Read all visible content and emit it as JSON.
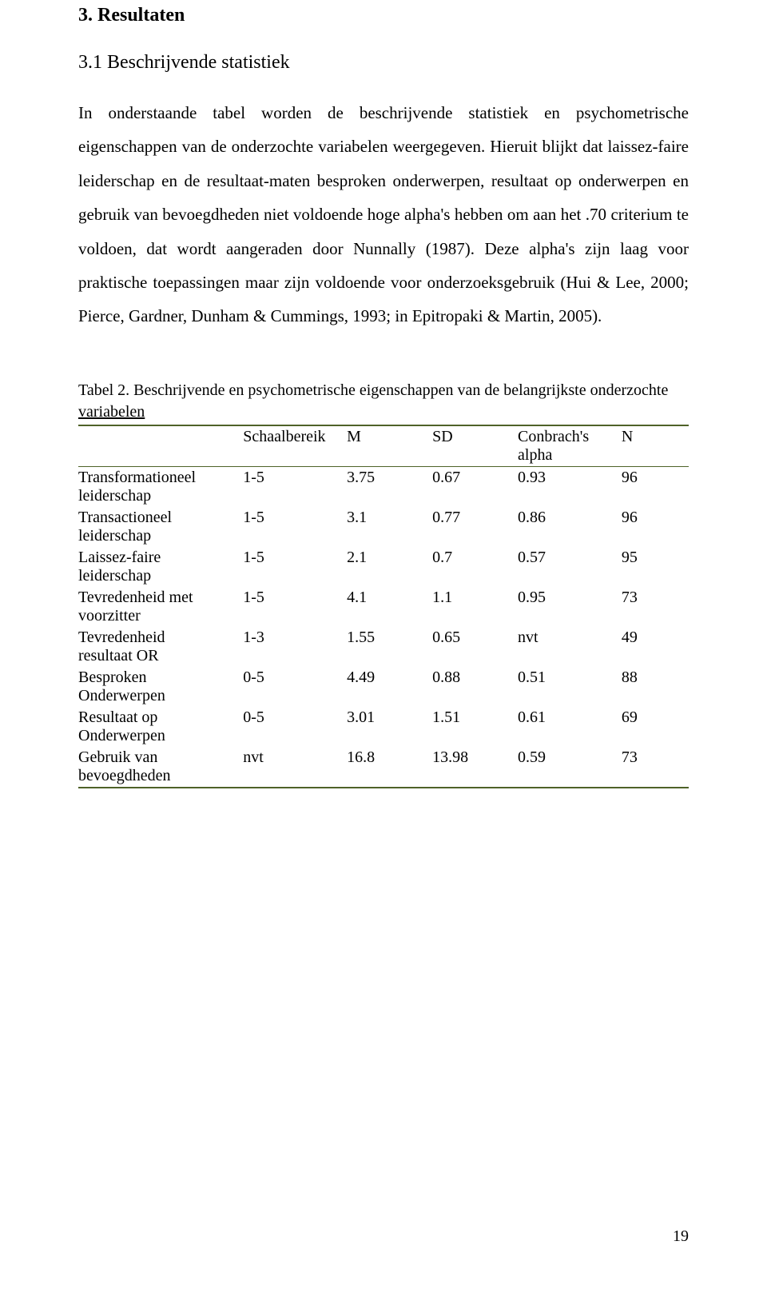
{
  "colors": {
    "text": "#000000",
    "background": "#ffffff",
    "table_border": "#4f6228"
  },
  "fonts": {
    "body_family": "Times New Roman",
    "h1_size_pt": 16,
    "body_size_pt": 14,
    "table_size_pt": 13
  },
  "heading1": "3. Resultaten",
  "heading2": "3.1 Beschrijvende statistiek",
  "paragraph": "In onderstaande tabel worden de beschrijvende statistiek en psychometrische eigenschappen van de onderzochte variabelen weergegeven. Hieruit blijkt dat laissez-faire leiderschap en de resultaat-maten besproken onderwerpen, resultaat op onderwerpen en gebruik van bevoegdheden niet voldoende hoge alpha's hebben om aan het .70 criterium te voldoen, dat wordt aangeraden door Nunnally (1987). Deze alpha's zijn laag voor praktische toepassingen maar zijn voldoende voor onderzoeksgebruik (Hui & Lee, 2000; Pierce, Gardner, Dunham & Cummings, 1993; in Epitropaki & Martin, 2005).",
  "table_caption_prefix": "Tabel 2. Beschrijvende en psychometrische eigenschappen van de belangrijkste onderzochte ",
  "table_caption_underlined": "variabelen",
  "table": {
    "headers": {
      "c0": "",
      "c1": "Schaalbereik",
      "c2": "M",
      "c3": "SD",
      "c4_line1": "Conbrach's",
      "c4_line2": "alpha",
      "c5": "N"
    },
    "rows": [
      {
        "label_l1": "Transformationeel",
        "label_l2": "leiderschap",
        "s": "1-5",
        "m": "3.75",
        "sd": "0.67",
        "ca": "0.93",
        "n": "96"
      },
      {
        "label_l1": "Transactioneel",
        "label_l2": "leiderschap",
        "s": "1-5",
        "m": "3.1",
        "sd": "0.77",
        "ca": "0.86",
        "n": "96"
      },
      {
        "label_l1": "Laissez-faire",
        "label_l2": "leiderschap",
        "s": "1-5",
        "m": "2.1",
        "sd": "0.7",
        "ca": "0.57",
        "n": "95"
      },
      {
        "label_l1": "Tevredenheid met",
        "label_l2": "voorzitter",
        "s": "1-5",
        "m": "4.1",
        "sd": "1.1",
        "ca": "0.95",
        "n": "73"
      },
      {
        "label_l1": "Tevredenheid",
        "label_l2": "resultaat OR",
        "s": "1-3",
        "m": "1.55",
        "sd": "0.65",
        "ca": "nvt",
        "n": "49"
      },
      {
        "label_l1": "Besproken",
        "label_l2": "Onderwerpen",
        "s": "0-5",
        "m": "4.49",
        "sd": "0.88",
        "ca": "0.51",
        "n": "88"
      },
      {
        "label_l1": "Resultaat op",
        "label_l2": "Onderwerpen",
        "s": "0-5",
        "m": "3.01",
        "sd": "1.51",
        "ca": "0.61",
        "n": "69"
      },
      {
        "label_l1": "Gebruik van",
        "label_l2": "bevoegdheden",
        "s": "nvt",
        "m": "16.8",
        "sd": "13.98",
        "ca": "0.59",
        "n": "73"
      }
    ]
  },
  "page_number": "19"
}
